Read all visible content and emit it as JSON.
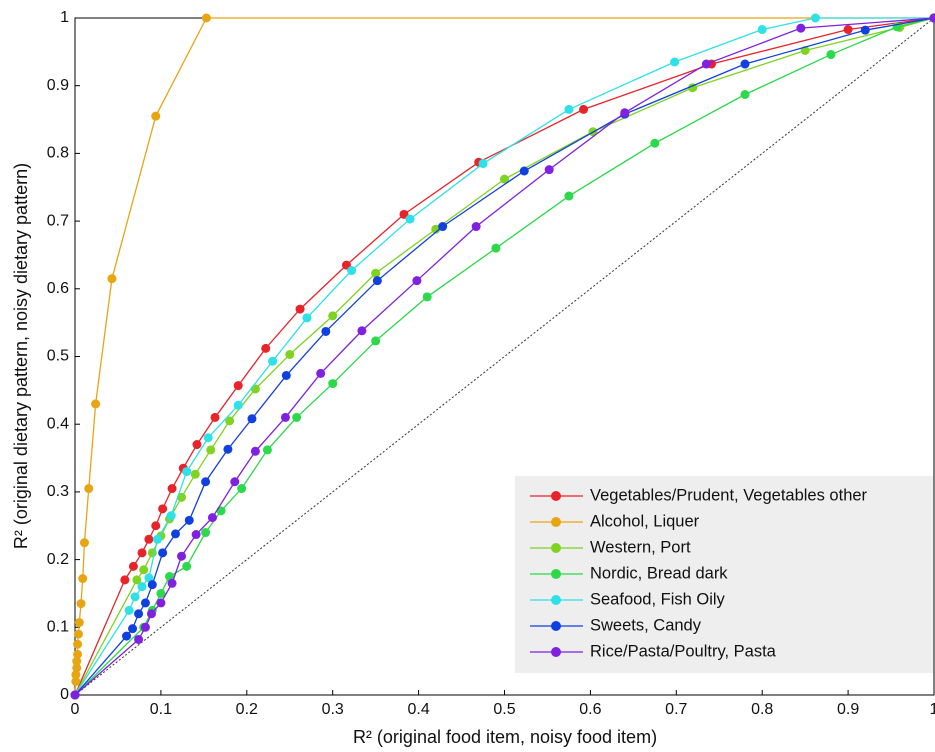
{
  "chart_data": {
    "type": "line",
    "x_label": "R² (original food item, noisy food item)",
    "y_label": "R² (original dietary pattern, noisy dietary pattern)",
    "xlim": [
      0,
      1
    ],
    "ylim": [
      0,
      1
    ],
    "xticks": [
      0,
      0.1,
      0.2,
      0.3,
      0.4,
      0.5,
      0.6,
      0.7,
      0.8,
      0.9,
      1
    ],
    "yticks": [
      0,
      0.1,
      0.2,
      0.3,
      0.4,
      0.5,
      0.6,
      0.7,
      0.8,
      0.9,
      1
    ],
    "legend": "lower right",
    "series": [
      {
        "name": "Vegetables/Prudent, Vegetables other",
        "color": "#e8232a",
        "x": [
          0,
          0.058,
          0.068,
          0.078,
          0.086,
          0.094,
          0.102,
          0.113,
          0.126,
          0.142,
          0.163,
          0.19,
          0.222,
          0.262,
          0.316,
          0.383,
          0.47,
          0.592,
          0.741,
          0.9,
          1
        ],
        "values": [
          0,
          0.17,
          0.19,
          0.21,
          0.23,
          0.25,
          0.275,
          0.305,
          0.335,
          0.37,
          0.41,
          0.457,
          0.512,
          0.57,
          0.635,
          0.71,
          0.787,
          0.865,
          0.932,
          0.983,
          1
        ]
      },
      {
        "name": "Alcohol, Liquer",
        "color": "#e8a512",
        "x": [
          0,
          0.001,
          0.001,
          0.002,
          0.002,
          0.003,
          0.003,
          0.004,
          0.005,
          0.007,
          0.009,
          0.011,
          0.016,
          0.024,
          0.043,
          0.094,
          0.153,
          1
        ],
        "values": [
          0,
          0.02,
          0.03,
          0.04,
          0.05,
          0.06,
          0.075,
          0.09,
          0.107,
          0.135,
          0.172,
          0.225,
          0.305,
          0.43,
          0.615,
          0.855,
          1,
          1
        ]
      },
      {
        "name": "Western, Port",
        "color": "#7fd321",
        "x": [
          0,
          0.072,
          0.08,
          0.09,
          0.1,
          0.11,
          0.124,
          0.14,
          0.158,
          0.18,
          0.21,
          0.25,
          0.3,
          0.35,
          0.42,
          0.5,
          0.603,
          0.719,
          0.85,
          0.96,
          1
        ],
        "values": [
          0,
          0.17,
          0.185,
          0.21,
          0.235,
          0.26,
          0.292,
          0.326,
          0.362,
          0.405,
          0.452,
          0.503,
          0.56,
          0.623,
          0.688,
          0.762,
          0.832,
          0.897,
          0.952,
          0.986,
          1
        ]
      },
      {
        "name": "Nordic,  Bread dark",
        "color": "#2bd94a",
        "x": [
          0,
          0.08,
          0.09,
          0.1,
          0.11,
          0.13,
          0.152,
          0.17,
          0.194,
          0.224,
          0.258,
          0.3,
          0.35,
          0.41,
          0.49,
          0.575,
          0.675,
          0.78,
          0.88,
          0.957,
          1
        ],
        "values": [
          0,
          0.1,
          0.125,
          0.15,
          0.175,
          0.19,
          0.24,
          0.272,
          0.305,
          0.362,
          0.41,
          0.46,
          0.523,
          0.588,
          0.66,
          0.737,
          0.815,
          0.887,
          0.946,
          0.987,
          1
        ]
      },
      {
        "name": "Seafood, Fish Oily",
        "color": "#2ee0e8",
        "x": [
          0,
          0.063,
          0.07,
          0.078,
          0.086,
          0.096,
          0.112,
          0.13,
          0.155,
          0.19,
          0.23,
          0.27,
          0.322,
          0.39,
          0.475,
          0.575,
          0.698,
          0.8,
          0.862,
          1
        ],
        "values": [
          0,
          0.125,
          0.145,
          0.16,
          0.173,
          0.23,
          0.265,
          0.33,
          0.38,
          0.428,
          0.493,
          0.557,
          0.627,
          0.703,
          0.785,
          0.865,
          0.935,
          0.983,
          1,
          1
        ]
      },
      {
        "name": "Sweets, Candy",
        "color": "#1040e0",
        "x": [
          0,
          0.06,
          0.067,
          0.074,
          0.082,
          0.09,
          0.102,
          0.117,
          0.133,
          0.152,
          0.178,
          0.206,
          0.246,
          0.292,
          0.352,
          0.428,
          0.523,
          0.64,
          0.78,
          0.92,
          1
        ],
        "values": [
          0,
          0.087,
          0.098,
          0.12,
          0.136,
          0.163,
          0.21,
          0.238,
          0.258,
          0.315,
          0.363,
          0.408,
          0.472,
          0.537,
          0.612,
          0.692,
          0.774,
          0.858,
          0.932,
          0.982,
          1
        ]
      },
      {
        "name": "Rice/Pasta/Poultry, Pasta",
        "color": "#8020e0",
        "x": [
          0,
          0.074,
          0.082,
          0.089,
          0.1,
          0.113,
          0.124,
          0.141,
          0.16,
          0.186,
          0.21,
          0.245,
          0.286,
          0.334,
          0.398,
          0.467,
          0.552,
          0.64,
          0.735,
          0.845,
          1
        ],
        "values": [
          0,
          0.082,
          0.1,
          0.12,
          0.136,
          0.165,
          0.205,
          0.237,
          0.262,
          0.315,
          0.36,
          0.41,
          0.475,
          0.538,
          0.612,
          0.692,
          0.776,
          0.86,
          0.932,
          0.985,
          1
        ]
      }
    ]
  }
}
